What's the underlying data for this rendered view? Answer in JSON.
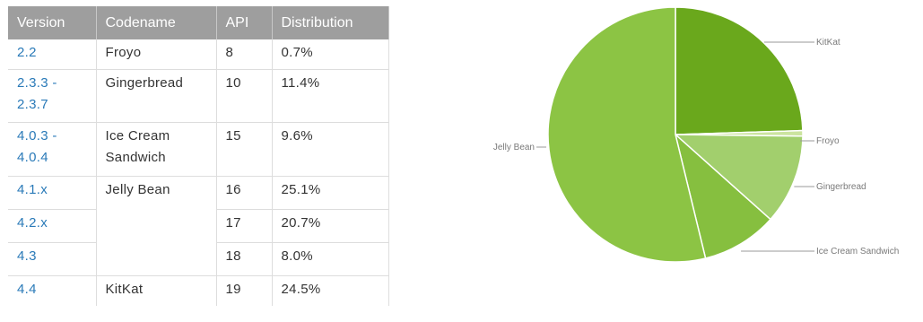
{
  "table": {
    "headers": [
      "Version",
      "Codename",
      "API",
      "Distribution"
    ],
    "rows": [
      {
        "version": "2.2",
        "codename": "Froyo",
        "api": "8",
        "distribution": "0.7%"
      },
      {
        "version": "2.3.3 - 2.3.7",
        "codename": "Gingerbread",
        "api": "10",
        "distribution": "11.4%"
      },
      {
        "version": "4.0.3 - 4.0.4",
        "codename": "Ice Cream Sandwich",
        "api": "15",
        "distribution": "9.6%"
      },
      {
        "version": "4.1.x",
        "codename": "Jelly Bean",
        "api": "16",
        "distribution": "25.1%"
      },
      {
        "version": "4.2.x",
        "codename": "",
        "api": "17",
        "distribution": "20.7%"
      },
      {
        "version": "4.3",
        "codename": "",
        "api": "18",
        "distribution": "8.0%"
      },
      {
        "version": "4.4",
        "codename": "KitKat",
        "api": "19",
        "distribution": "24.5%"
      }
    ]
  },
  "chart_data": {
    "type": "pie",
    "categories": [
      "KitKat",
      "Froyo",
      "Gingerbread",
      "Ice Cream Sandwich",
      "Jelly Bean"
    ],
    "values": [
      24.5,
      0.7,
      11.4,
      9.6,
      53.8
    ],
    "colors": [
      "#6aa81c",
      "#cbe49f",
      "#a2cf6d",
      "#86bf3f",
      "#8cc444"
    ],
    "legend": "slice labels with leader lines"
  }
}
